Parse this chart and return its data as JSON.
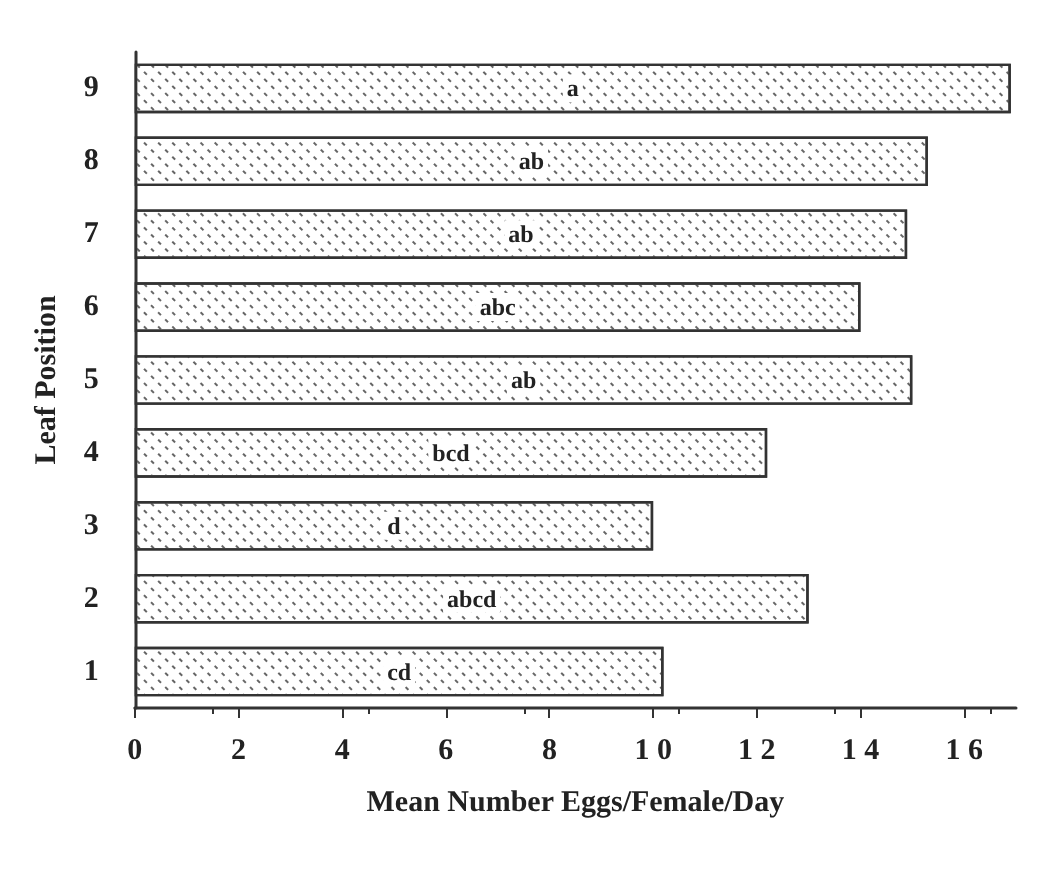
{
  "chart_data": {
    "type": "bar",
    "orientation": "horizontal",
    "xlabel": "Mean Number Eggs/Female/Day",
    "ylabel": "Leaf Position",
    "categories": [
      "9",
      "8",
      "7",
      "6",
      "5",
      "4",
      "3",
      "2",
      "1"
    ],
    "values": [
      16.9,
      15.3,
      14.9,
      14.0,
      15.0,
      12.2,
      10.0,
      13.0,
      10.2
    ],
    "value_labels": [
      "a",
      "ab",
      "ab",
      "abc",
      "ab",
      "bcd",
      "d",
      "abcd",
      "cd"
    ],
    "color": "#ffffff",
    "xlim": [
      0,
      17
    ],
    "xticks": [
      0,
      2,
      4,
      6,
      8,
      {
        "value": 10,
        "label": "1 0"
      },
      {
        "value": 12,
        "label": "1 2"
      },
      {
        "value": 14,
        "label": "1 4"
      },
      {
        "value": 16,
        "label": "1 6"
      }
    ],
    "grid": false
  }
}
